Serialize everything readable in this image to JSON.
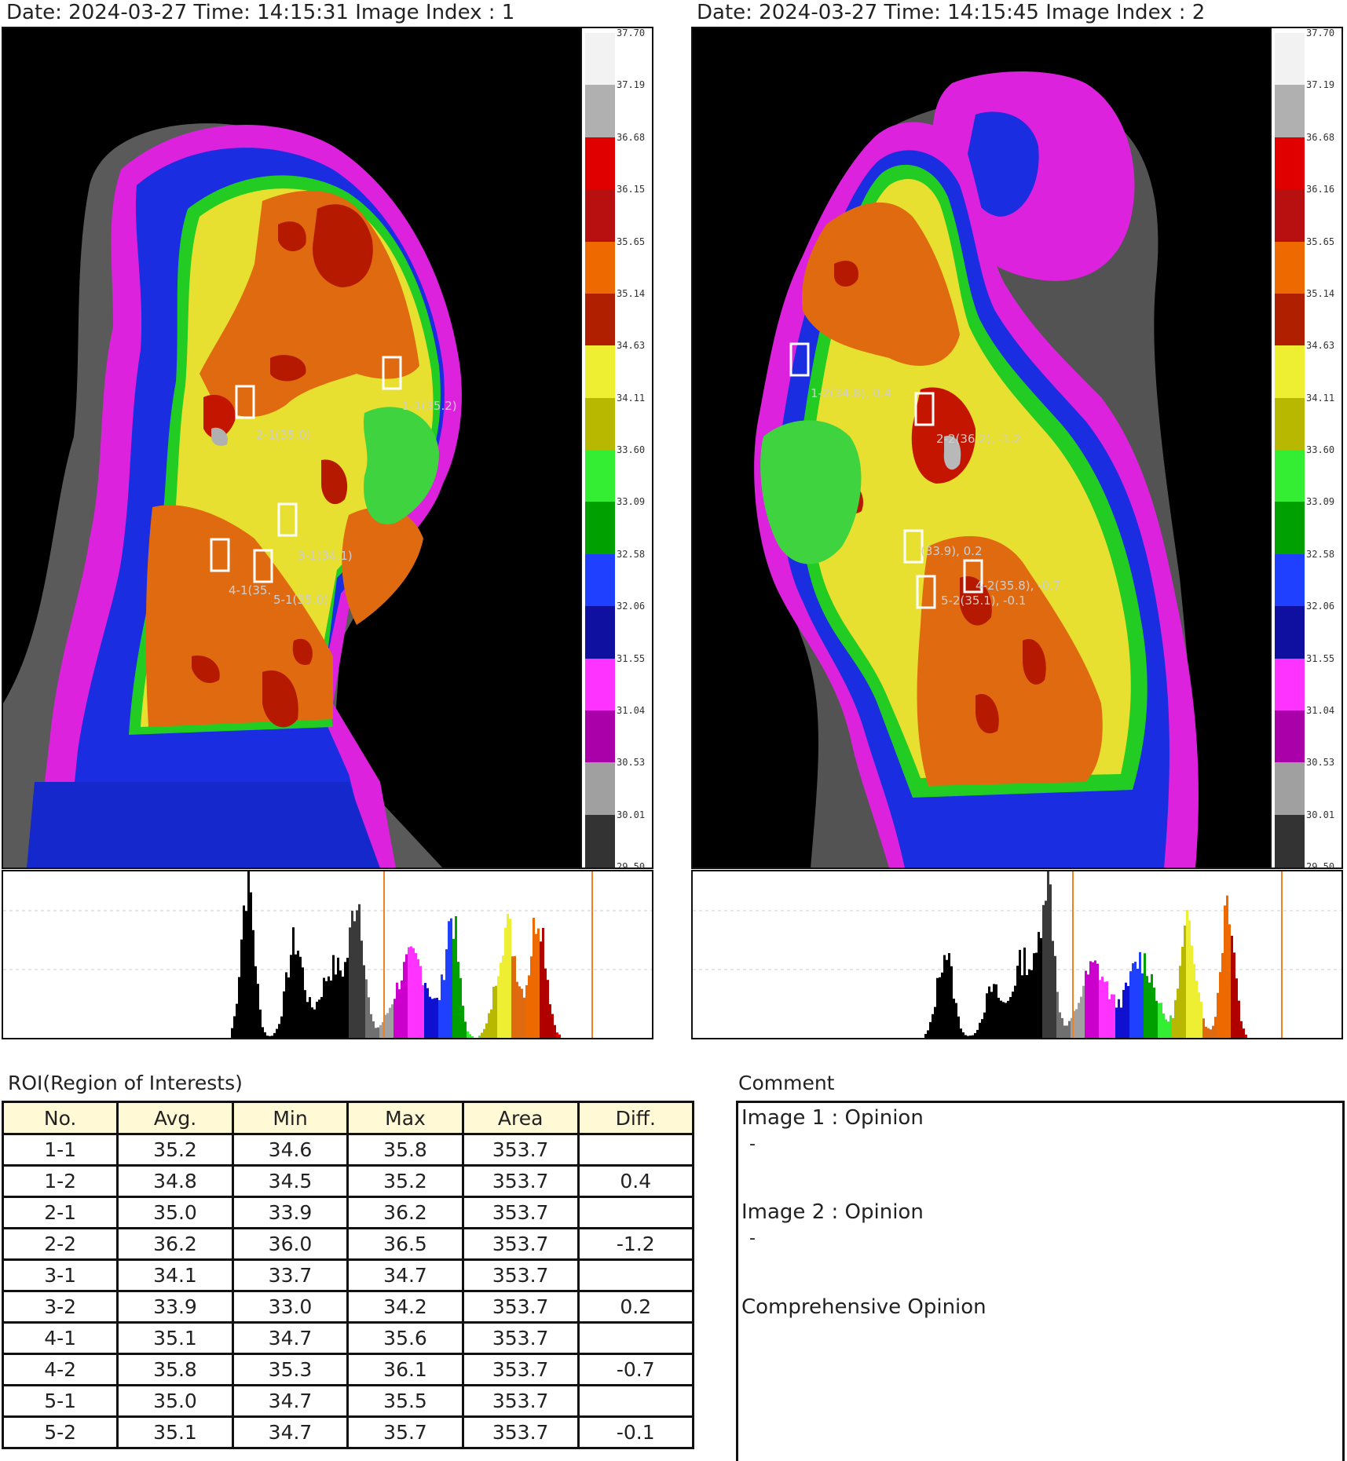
{
  "images": [
    {
      "header": "Date: 2024-03-27 Time: 14:15:31 Image Index : 1",
      "roi_labels": [
        "1-1(35.2)",
        "2-1(35.0)",
        "3-1(34.1)",
        "4-1(35.",
        "5-1(35.0)"
      ]
    },
    {
      "header": "Date: 2024-03-27 Time: 14:15:45 Image Index : 2",
      "roi_labels": [
        "1-2(34.8), 0.4",
        "2-2(36.2), -1.2",
        "(33.9), 0.2",
        "4-2(35.8), -0.7",
        "5-2(35.1), -0.1"
      ]
    }
  ],
  "scale": {
    "labels_left": [
      "37.70",
      "37.19",
      "36.68",
      "36.15",
      "35.65",
      "35.14",
      "34.63",
      "34.11",
      "33.60",
      "33.09",
      "32.58",
      "32.06",
      "31.55",
      "31.04",
      "30.53",
      "30.01",
      "29.50"
    ],
    "labels_right": [
      "37.70",
      "37.19",
      "36.68",
      "36.16",
      "35.65",
      "35.14",
      "34.63",
      "34.11",
      "33.60",
      "33.09",
      "32.58",
      "32.06",
      "31.55",
      "31.04",
      "30.53",
      "30.01",
      "29.50"
    ]
  },
  "roi": {
    "title": "ROI(Region of Interests)",
    "columns": [
      "No.",
      "Avg.",
      "Min",
      "Max",
      "Area",
      "Diff."
    ],
    "rows": [
      [
        "1-1",
        "35.2",
        "34.6",
        "35.8",
        "353.7",
        ""
      ],
      [
        "1-2",
        "34.8",
        "34.5",
        "35.2",
        "353.7",
        "0.4"
      ],
      [
        "2-1",
        "35.0",
        "33.9",
        "36.2",
        "353.7",
        ""
      ],
      [
        "2-2",
        "36.2",
        "36.0",
        "36.5",
        "353.7",
        "-1.2"
      ],
      [
        "3-1",
        "34.1",
        "33.7",
        "34.7",
        "353.7",
        ""
      ],
      [
        "3-2",
        "33.9",
        "33.0",
        "34.2",
        "353.7",
        "0.2"
      ],
      [
        "4-1",
        "35.1",
        "34.7",
        "35.6",
        "353.7",
        ""
      ],
      [
        "4-2",
        "35.8",
        "35.3",
        "36.1",
        "353.7",
        "-0.7"
      ],
      [
        "5-1",
        "35.0",
        "34.7",
        "35.5",
        "353.7",
        ""
      ],
      [
        "5-2",
        "35.1",
        "34.7",
        "35.7",
        "353.7",
        "-0.1"
      ]
    ]
  },
  "comment": {
    "title": "Comment",
    "image1_label": "Image 1 : Opinion",
    "image1_value": "-",
    "image2_label": "Image 2 : Opinion",
    "image2_value": "-",
    "comprehensive_label": "Comprehensive Opinion"
  },
  "colors": {
    "palette": [
      "#111111",
      "#3a3a3a",
      "#707070",
      "#a0a0a0",
      "#cc00cc",
      "#ff33ff",
      "#1010d0",
      "#2040ff",
      "#00a000",
      "#33ee33",
      "#b8b800",
      "#eeee33",
      "#aa1e00",
      "#ee6a00",
      "#b80000",
      "#e00000",
      "#b0b0b0",
      "#e8e8e8"
    ],
    "histogram_marker": "#f08020",
    "table_header_bg": "#fff9d6"
  }
}
